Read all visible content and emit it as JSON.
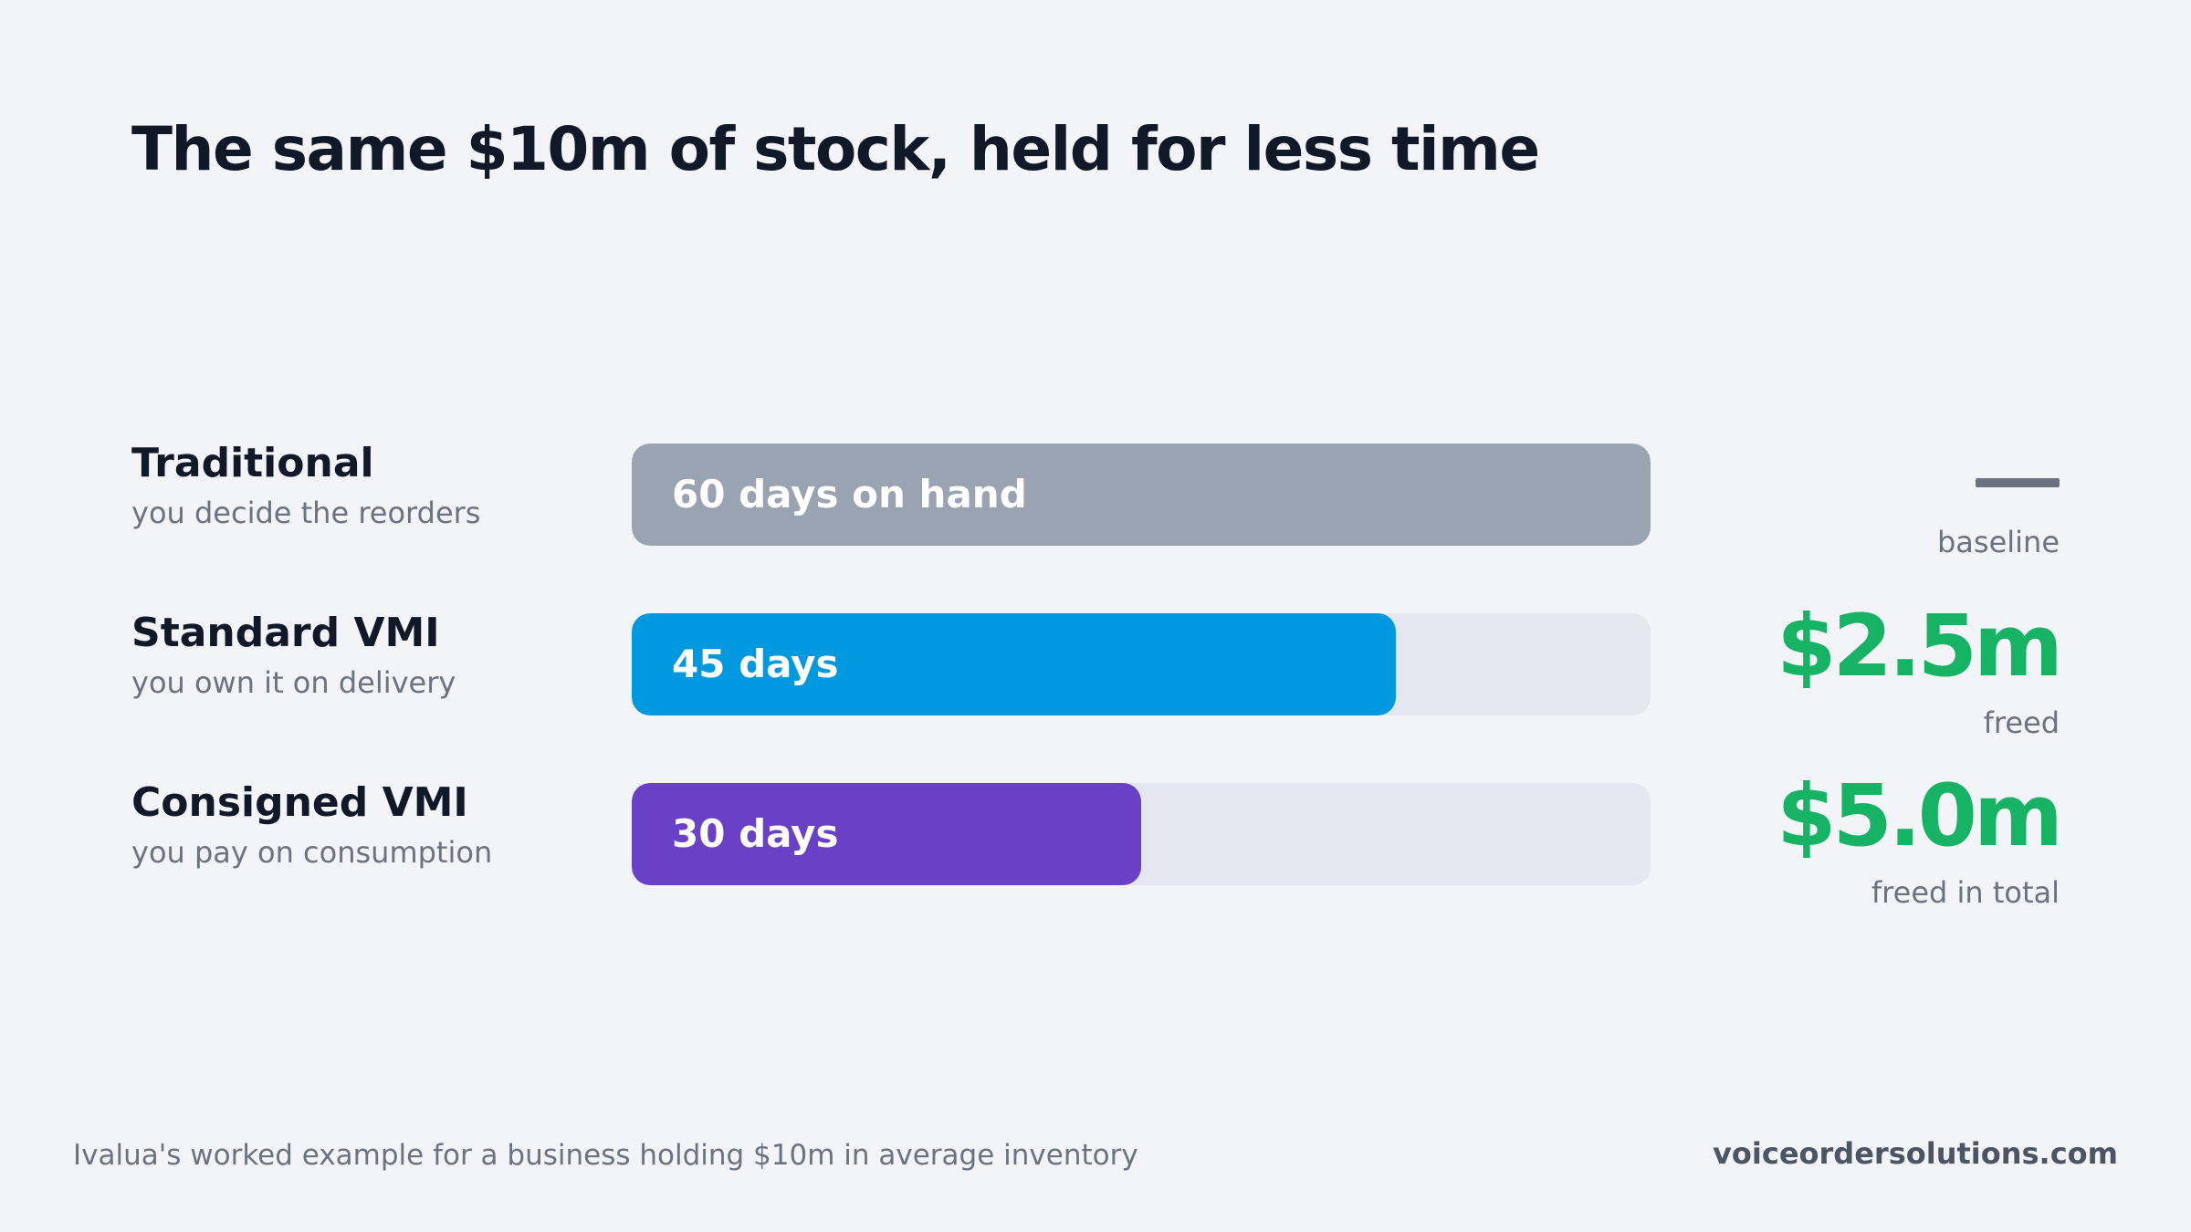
{
  "title": "The same $10m of stock, held for less time",
  "chart_data": {
    "type": "bar",
    "orientation": "horizontal",
    "title": "The same $10m of stock, held for less time",
    "unit": "days",
    "xlim": [
      0,
      60
    ],
    "categories": [
      "Traditional",
      "Standard VMI",
      "Consigned VMI"
    ],
    "values": [
      60,
      45,
      30
    ],
    "rows": [
      {
        "name": "Traditional",
        "subtitle": "you decide the reorders",
        "days": 60,
        "bar_label": "60 days on hand",
        "color": "#9aa3b2",
        "result_value": "",
        "result_caption": "baseline",
        "baseline_marker": true
      },
      {
        "name": "Standard VMI",
        "subtitle": "you own it on delivery",
        "days": 45,
        "bar_label": "45 days",
        "color": "#0099e0",
        "result_value": "$2.5m",
        "result_caption": "freed",
        "baseline_marker": false
      },
      {
        "name": "Consigned VMI",
        "subtitle": "you pay on consumption",
        "days": 30,
        "bar_label": "30 days",
        "color": "#6941c6",
        "result_value": "$5.0m",
        "result_caption": "freed in total",
        "baseline_marker": false
      }
    ]
  },
  "colors": {
    "background": "#f2f4f8",
    "track": "#e4e7ef",
    "title": "#111827",
    "muted": "#6b7280",
    "freed": "#16b364"
  },
  "footer": {
    "note": "Ivalua's worked example for a business holding $10m in average inventory",
    "brand": "voiceordersolutions.com"
  }
}
